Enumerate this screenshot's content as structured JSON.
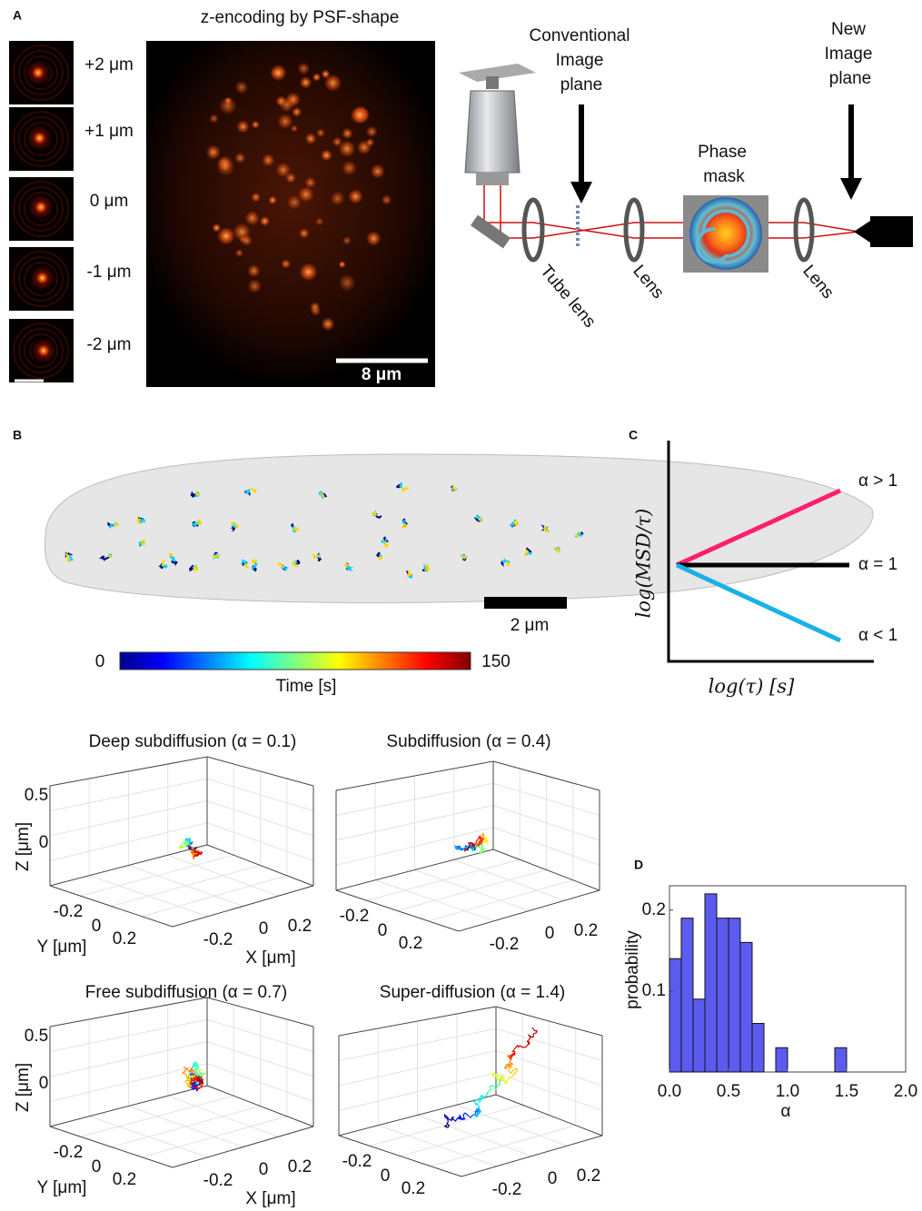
{
  "panel_labels": {
    "a": "A",
    "b": "B",
    "c": "C",
    "d": "D"
  },
  "panel_a": {
    "title": "z-encoding by PSF-shape",
    "psf_labels": [
      "+2 μm",
      "+1 μm",
      "0 μm",
      "-1 μm",
      "-2 μm"
    ],
    "scale_bar": "8 μm",
    "conventional": [
      "Conventional",
      "Image",
      "plane"
    ],
    "new_plane": [
      "New",
      "Image",
      "plane"
    ],
    "phase_mask": [
      "Phase",
      "mask"
    ],
    "tube_lens": "Tube lens",
    "lens_1": "Lens",
    "lens_2": "Lens"
  },
  "panel_b": {
    "scale_bar": "2 μm",
    "colorbar": {
      "min": 0,
      "max": 150,
      "label": "Time [s]"
    }
  },
  "panel_c": {
    "y_label": "log(MSD/τ)",
    "x_label": "log(τ) [s]",
    "lines": [
      "α > 1",
      "α = 1",
      "α < 1"
    ]
  },
  "trajectory_plots": [
    {
      "title": "Deep subdiffusion (α = 0.1)",
      "z_ticks": [
        "0.5",
        "0"
      ],
      "y_ticks": [
        "-0.2",
        "0",
        "0.2"
      ],
      "x_ticks": [
        "-0.2",
        "0",
        "0.2"
      ],
      "z_label": "Z [μm]",
      "y_label": "Y [μm]",
      "x_label": "X [μm]"
    },
    {
      "title": "Subdiffusion (α = 0.4)",
      "y_ticks": [
        "-0.2",
        "0",
        "0.2"
      ],
      "x_ticks": [
        "-0.2",
        "0",
        "0.2"
      ]
    },
    {
      "title": "Free subdiffusion (α = 0.7)",
      "z_ticks": [
        "0.5",
        "0"
      ],
      "y_ticks": [
        "-0.2",
        "0",
        "0.2"
      ],
      "x_ticks": [
        "-0.2",
        "0",
        "0.2"
      ],
      "z_label": "Z [μm]",
      "y_label": "Y [μm]",
      "x_label": "X [μm]"
    },
    {
      "title": "Super-diffusion (α = 1.4)",
      "y_ticks": [
        "-0.2",
        "0",
        "0.2"
      ],
      "x_ticks": [
        "-0.2",
        "0",
        "0.2"
      ]
    }
  ],
  "chart_data": {
    "type": "histogram",
    "x_label": "α",
    "y_label": "probability",
    "color": "#5b5bf0",
    "bins": [
      0,
      0.1,
      0.2,
      0.3,
      0.4,
      0.5,
      0.6,
      0.7,
      0.8,
      0.9,
      1.0,
      1.1,
      1.2,
      1.3,
      1.4,
      1.5,
      1.6,
      1.7,
      1.8,
      1.9,
      2.0
    ],
    "values": [
      0.14,
      0.19,
      0.09,
      0.22,
      0.19,
      0.19,
      0.16,
      0.06,
      0,
      0.03,
      0,
      0,
      0,
      0,
      0.03,
      0,
      0,
      0,
      0,
      0
    ],
    "xlim": [
      0,
      2.0
    ],
    "ylim": [
      0,
      0.23
    ],
    "xticks": [
      {
        "value": 0,
        "label": "0.0"
      },
      0.5,
      {
        "value": 1,
        "label": "1.0"
      },
      1.5,
      {
        "value": 2,
        "label": "2.0"
      }
    ],
    "yticks": [
      0.1,
      0.2
    ]
  }
}
